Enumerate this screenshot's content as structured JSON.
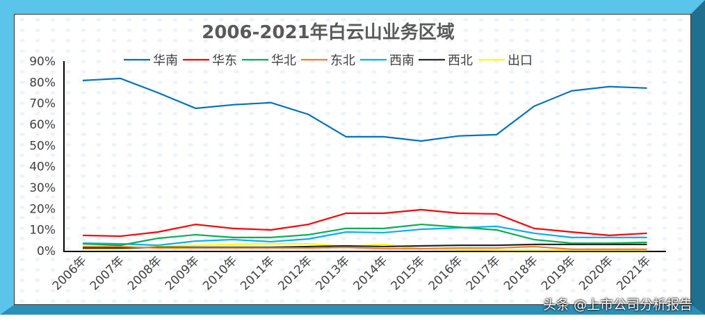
{
  "watermark": "头条 @上市公司分析报告",
  "chart_data": {
    "type": "line",
    "title": "2006-2021年白云山业务区域",
    "xlabel": "",
    "ylabel": "",
    "ylim": [
      0,
      90
    ],
    "yticks": [
      "0%",
      "10%",
      "20%",
      "30%",
      "40%",
      "50%",
      "60%",
      "70%",
      "80%",
      "90%"
    ],
    "legend_position": "top",
    "categories": [
      "2006年",
      "2007年",
      "2008年",
      "2009年",
      "2010年",
      "2011年",
      "2012年",
      "2013年",
      "2014年",
      "2015年",
      "2016年",
      "2017年",
      "2018年",
      "2019年",
      "2020年",
      "2021年"
    ],
    "series": [
      {
        "name": "华南",
        "color": "#0070C0",
        "values": [
          80.8,
          81.8,
          75.0,
          67.6,
          69.3,
          70.3,
          64.7,
          54.1,
          54.1,
          52.1,
          54.5,
          55.1,
          68.6,
          75.9,
          77.9,
          77.2
        ]
      },
      {
        "name": "华东",
        "color": "#FF0000",
        "values": [
          7.3,
          6.9,
          8.9,
          12.5,
          10.6,
          9.9,
          12.5,
          17.8,
          17.8,
          19.5,
          17.8,
          17.5,
          10.6,
          8.9,
          7.3,
          8.3
        ]
      },
      {
        "name": "华北",
        "color": "#00B050",
        "values": [
          3.3,
          2.6,
          5.9,
          7.6,
          6.3,
          6.3,
          7.6,
          10.6,
          10.6,
          12.5,
          11.2,
          9.9,
          5.3,
          3.6,
          3.6,
          4.0
        ]
      },
      {
        "name": "东北",
        "color": "#ED7D31",
        "values": [
          2.0,
          2.0,
          1.3,
          1.3,
          1.3,
          1.3,
          1.3,
          1.6,
          1.0,
          1.0,
          1.3,
          1.3,
          2.0,
          0.7,
          0.7,
          0.7
        ]
      },
      {
        "name": "西南",
        "color": "#00B0F0",
        "values": [
          3.6,
          3.3,
          2.6,
          4.6,
          5.3,
          4.3,
          5.6,
          8.9,
          8.6,
          10.2,
          10.9,
          11.6,
          8.3,
          6.3,
          6.3,
          6.3
        ]
      },
      {
        "name": "西北",
        "color": "#262626",
        "values": [
          1.3,
          1.3,
          1.6,
          1.6,
          1.6,
          1.6,
          2.0,
          2.3,
          2.0,
          2.3,
          2.6,
          2.6,
          3.0,
          3.0,
          3.0,
          3.0
        ]
      },
      {
        "name": "出口",
        "color": "#FFFF00",
        "values": [
          0.7,
          0.7,
          2.0,
          2.6,
          3.0,
          3.3,
          3.3,
          2.0,
          3.0,
          1.0,
          0.5,
          0.3,
          0.3,
          0.3,
          0.3,
          0.3
        ]
      }
    ]
  }
}
